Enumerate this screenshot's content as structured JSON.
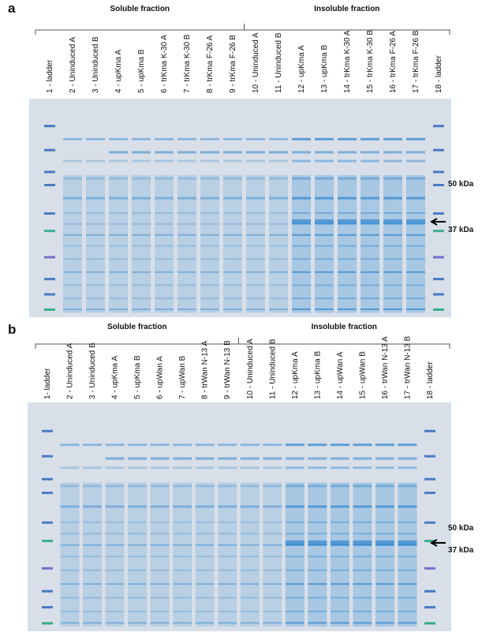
{
  "panels": [
    {
      "label": "a",
      "groups": [
        "Soluble fraction",
        "Insoluble fraction"
      ],
      "lanes": [
        "1 - ladder",
        "2 - Uninduced A",
        "3 - Uninduced B",
        "4 - upKma A",
        "5 - upKma B",
        "6 - trKma K-30 A",
        "7 - trKma K-30 B",
        "8 - trKma F-26 A",
        "9 - trKma F-26 B",
        "10 - Uninduced A",
        "11 - Uninduced B",
        "12 - upKma A",
        "13 - upKma B",
        "14 - trKma K-30 A",
        "15 - trKma K-30 B",
        "16 - trKma F-26 A",
        "17 - trKma F-26 B",
        "18 - ladder"
      ],
      "markers": [
        "50 kDa",
        "37 kDa"
      ]
    },
    {
      "label": "b",
      "groups": [
        "Soluble fraction",
        "Insoluble fraction"
      ],
      "lanes": [
        "1- ladder",
        "2 - Uninduced A",
        "3 - Uninduced B",
        "4 - upKma A",
        "5 - upKma B",
        "6 - upWan A",
        "7 - upWan B",
        "8 - trWan N-13 A",
        "9 - trWan N-13 B",
        "10 - Uninduced A",
        "11 - Uninduced B",
        "12 - upKma A",
        "13 - upKma B",
        "14 - upWan A",
        "15 - upWan B",
        "16 - trWan N-13 A",
        "17 - trWan N-13 B",
        "18 - ladder"
      ],
      "markers": [
        "50 kDa",
        "37 kDa"
      ]
    }
  ]
}
